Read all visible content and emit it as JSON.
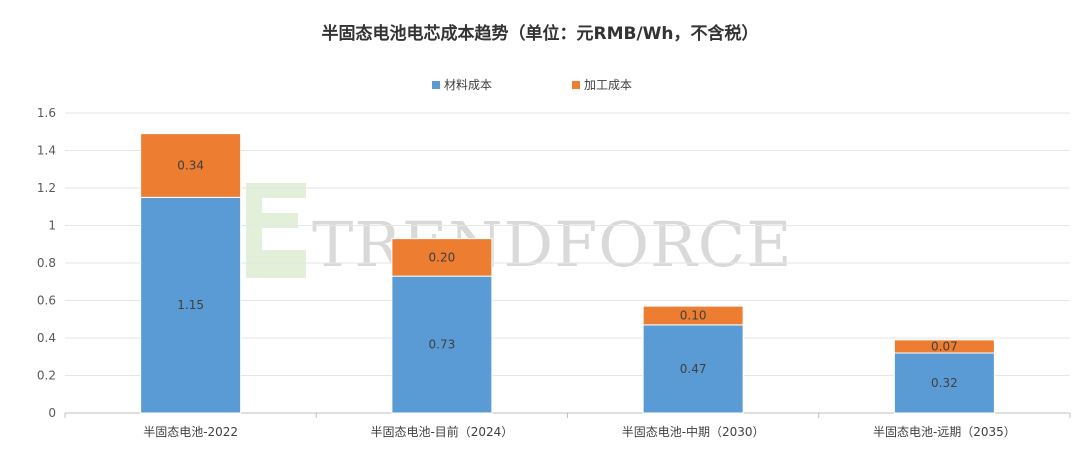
{
  "chart_data": {
    "type": "bar",
    "stacked": true,
    "title": "半固态电池电芯成本趋势（单位：元RMB/Wh，不含税）",
    "categories": [
      "半固态电池-2022",
      "半固态电池-目前（2024）",
      "半固态电池-中期（2030）",
      "半固态电池-远期（2035）"
    ],
    "series": [
      {
        "name": "材料成本",
        "color": "#5b9bd5",
        "values": [
          1.15,
          0.73,
          0.47,
          0.32
        ],
        "labels": [
          "1.15",
          "0.73",
          "0.47",
          "0.32"
        ]
      },
      {
        "name": "加工成本",
        "color": "#ed7d31",
        "values": [
          0.34,
          0.2,
          0.1,
          0.07
        ],
        "labels": [
          "0.34",
          "0.20",
          "0.10",
          "0.07"
        ]
      }
    ],
    "ylim": [
      0,
      1.6
    ],
    "yticks": [
      "0",
      "0.2",
      "0.4",
      "0.6",
      "0.8",
      "1",
      "1.2",
      "1.4",
      "1.6"
    ],
    "grid": true,
    "legend_position": "top-center"
  },
  "watermark": {
    "text": "TRENDFORCE",
    "logo_color": "#e2efd9"
  }
}
